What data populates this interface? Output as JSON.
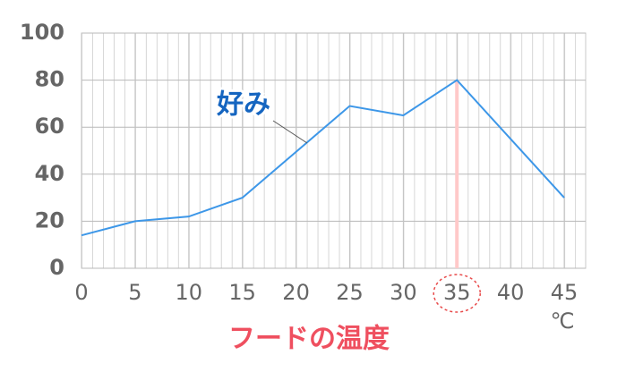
{
  "chart_data": {
    "type": "line",
    "annotation": "好み",
    "xlabel": "フードの温度",
    "x_unit": "℃",
    "series": [
      {
        "name": "好み",
        "color": "#3d97e8",
        "x": [
          0,
          5,
          10,
          15,
          25,
          30,
          35,
          45
        ],
        "values": [
          14,
          20,
          22,
          30,
          69,
          65,
          80,
          30
        ]
      }
    ],
    "xlim": [
      0,
      47
    ],
    "xticks": [
      0,
      5,
      10,
      15,
      20,
      25,
      30,
      35,
      40,
      45
    ],
    "ylim": [
      0,
      100
    ],
    "yticks": [
      0,
      20,
      40,
      60,
      80,
      100
    ],
    "grid": true,
    "highlight": {
      "x": 35,
      "color": "#ffc9c9",
      "circle_color": "#e84a4a"
    }
  }
}
